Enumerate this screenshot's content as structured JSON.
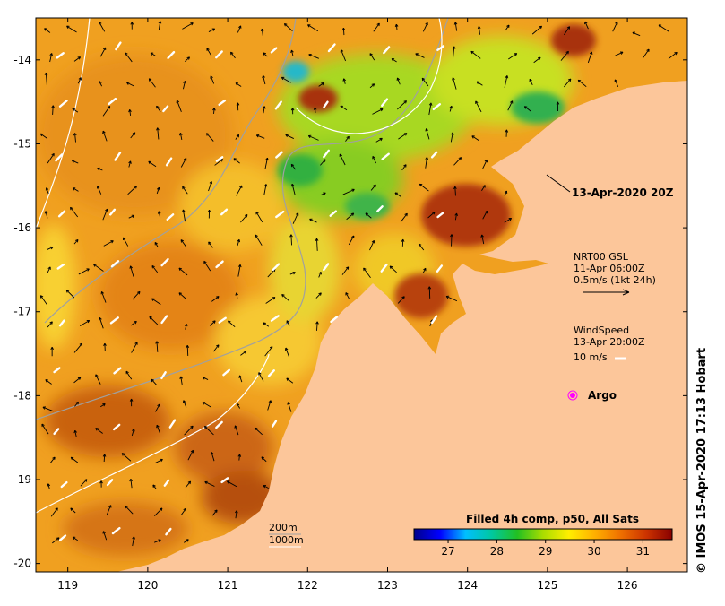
{
  "chart_data": {
    "type": "heatmap",
    "title": "13-Apr-2020 20Z",
    "x_ticks": [
      "119",
      "120",
      "121",
      "122",
      "123",
      "124",
      "125",
      "126"
    ],
    "y_ticks": [
      "-14",
      "-15",
      "-16",
      "-17",
      "-18",
      "-19",
      "-20"
    ],
    "xlim": [
      118.6,
      126.75
    ],
    "ylim": [
      -20.1,
      -13.5
    ],
    "colorbar": {
      "label": "Filled 4h comp, p50, All Sats",
      "ticks": [
        "27",
        "28",
        "29",
        "30",
        "31"
      ],
      "range": [
        26.3,
        31.6
      ],
      "colors": [
        "#00008b",
        "#0000ff",
        "#00bfff",
        "#00c8a0",
        "#22c022",
        "#aadd00",
        "#ffee00",
        "#ffb000",
        "#ee7000",
        "#cc3300",
        "#880000"
      ]
    },
    "legend": {
      "current_model": [
        "NRT00 GSL",
        "11-Apr 06:00Z",
        "0.5m/s (1kt 24h)"
      ],
      "wind": [
        "WindSpeed",
        "13-Apr 20:00Z",
        "10 m/s"
      ],
      "argo_label": "Argo"
    },
    "isobaths": [
      "200m",
      "1000m"
    ]
  },
  "credit": "© IMOS 15-Apr-2020 17:13 Hobart",
  "colors": {
    "land": "#fcc69a",
    "ocean_base": "#f0a020",
    "isobath_200": "#a0a0a0",
    "isobath_1000": "#ffffff",
    "argo": "#ff00ff"
  }
}
